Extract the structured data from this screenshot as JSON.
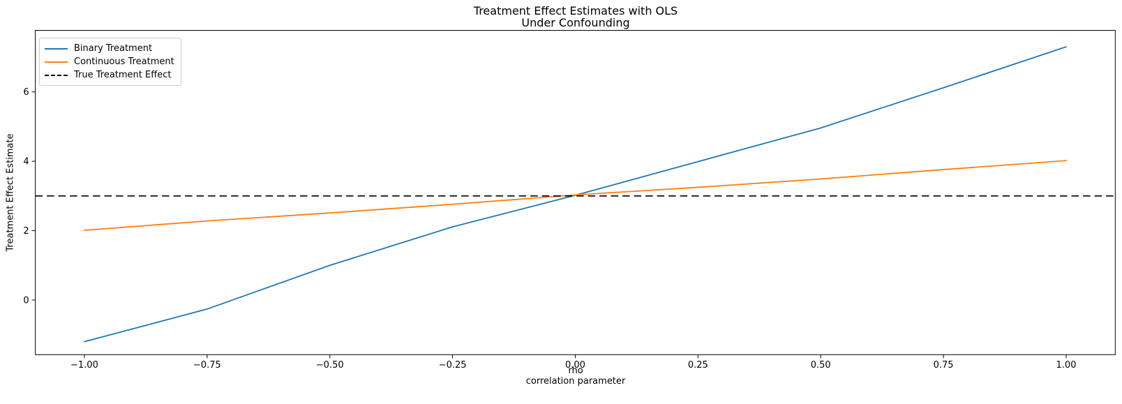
{
  "figure": {
    "background": "#ffffff",
    "text_color": "#000000",
    "axes_edge_color": "#000000",
    "legend_border_color": "#cccccc"
  },
  "chart_data": {
    "type": "line",
    "title": "Treatment Effect Estimates with OLS\nUnder Confounding",
    "title_lines": [
      "Treatment Effect Estimates with OLS",
      "Under Confounding"
    ],
    "xlabel": "rho\ncorrelation parameter",
    "xlabel_lines": [
      "rho",
      "correlation parameter"
    ],
    "ylabel": "Treatment Effect Estimate",
    "grid": false,
    "legend_position": "upper left",
    "xlim": [
      -1.1,
      1.1
    ],
    "ylim": [
      -1.575,
      7.774
    ],
    "x": [
      -1.0,
      -0.75,
      -0.5,
      -0.25,
      0.0,
      0.25,
      0.5,
      0.75,
      1.0
    ],
    "x_tick_values": [
      -1.0,
      -0.75,
      -0.5,
      -0.25,
      0.0,
      0.25,
      0.5,
      0.75,
      1.0
    ],
    "x_tick_labels": [
      "−1.00",
      "−0.75",
      "−0.50",
      "−0.25",
      "0.00",
      "0.25",
      "0.50",
      "0.75",
      "1.00"
    ],
    "y_tick_values": [
      0,
      2,
      4,
      6
    ],
    "y_tick_labels": [
      "0",
      "2",
      "4",
      "6"
    ],
    "series": [
      {
        "name": "Binary Treatment",
        "color": "#1f77b4",
        "style": "solid",
        "values": [
          -1.2,
          -0.26,
          1.0,
          2.11,
          3.02,
          3.99,
          4.96,
          6.12,
          7.3
        ]
      },
      {
        "name": "Continuous Treatment",
        "color": "#ff7f0e",
        "style": "solid",
        "values": [
          2.01,
          2.28,
          2.51,
          2.76,
          3.03,
          3.25,
          3.49,
          3.76,
          4.02
        ]
      },
      {
        "name": "True Treatment Effect",
        "color": "#000000",
        "style": "dashed",
        "constant": 3.0
      }
    ]
  }
}
